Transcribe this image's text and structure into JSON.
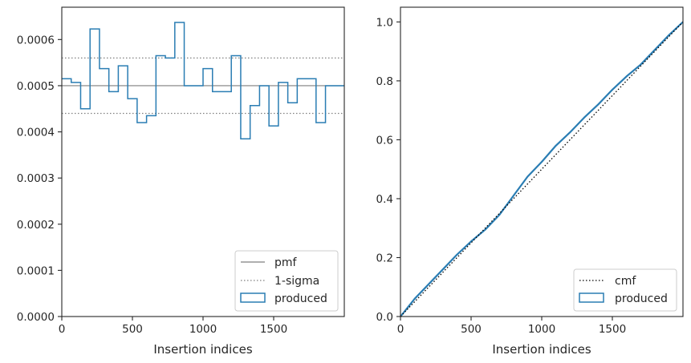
{
  "chart_data": [
    {
      "type": "line",
      "xlabel": "Insertion indices",
      "ylabel": "",
      "xlim": [
        0,
        2000
      ],
      "ylim": [
        0,
        0.00067
      ],
      "xticks": [
        0,
        500,
        1000,
        1500
      ],
      "xtick_labels": [
        "0",
        "500",
        "1000",
        "1500"
      ],
      "yticks": [
        0,
        0.0001,
        0.0002,
        0.0003,
        0.0004,
        0.0005,
        0.0006
      ],
      "ytick_labels": [
        "0.0000",
        "0.0001",
        "0.0002",
        "0.0003",
        "0.0004",
        "0.0005",
        "0.0006"
      ],
      "pmf": 0.0005,
      "sigma_bounds": [
        0.00044,
        0.00056
      ],
      "histogram": {
        "name": "produced",
        "bin_width": 66.67,
        "values": [
          0.000515,
          0.000507,
          0.00045,
          0.000623,
          0.000537,
          0.000487,
          0.000543,
          0.000472,
          0.00042,
          0.000435,
          0.000565,
          0.00056,
          0.000637,
          0.0005,
          0.0005,
          0.000537,
          0.000487,
          0.000487,
          0.000565,
          0.000385,
          0.000457,
          0.0005,
          0.000413,
          0.000507,
          0.000463,
          0.000515,
          0.000515,
          0.00042,
          0.0005,
          0.0005
        ]
      },
      "legend": {
        "position": "lower right",
        "entries": [
          {
            "label": "pmf",
            "style": "solid-gray"
          },
          {
            "label": "1-sigma",
            "style": "dotted-gray"
          },
          {
            "label": "produced",
            "style": "patch-blue"
          }
        ]
      }
    },
    {
      "type": "line",
      "xlabel": "Insertion indices",
      "ylabel": "",
      "xlim": [
        0,
        2000
      ],
      "ylim": [
        0,
        1.05
      ],
      "xticks": [
        0,
        500,
        1000,
        1500
      ],
      "xtick_labels": [
        "0",
        "500",
        "1000",
        "1500"
      ],
      "yticks": [
        0,
        0.2,
        0.4,
        0.6,
        0.8,
        1.0
      ],
      "ytick_labels": [
        "0.0",
        "0.2",
        "0.4",
        "0.6",
        "0.8",
        "1.0"
      ],
      "cmf": {
        "name": "cmf",
        "x": [
          0,
          2000
        ],
        "y": [
          0,
          1.0
        ]
      },
      "produced": {
        "name": "produced",
        "x": [
          0,
          100,
          200,
          300,
          400,
          500,
          600,
          700,
          800,
          900,
          1000,
          1100,
          1200,
          1300,
          1400,
          1500,
          1600,
          1700,
          1800,
          1900,
          2000
        ],
        "y": [
          0,
          0.06,
          0.11,
          0.16,
          0.21,
          0.255,
          0.295,
          0.345,
          0.41,
          0.475,
          0.525,
          0.58,
          0.625,
          0.675,
          0.72,
          0.77,
          0.815,
          0.855,
          0.905,
          0.955,
          1.0
        ]
      },
      "legend": {
        "position": "lower right",
        "entries": [
          {
            "label": "cmf",
            "style": "dotted-black"
          },
          {
            "label": "produced",
            "style": "patch-blue"
          }
        ]
      }
    }
  ],
  "colors": {
    "produced": "#2a7db3",
    "pmf": "#7f7f7f",
    "sigma": "#7f7f7f",
    "cmf": "#000000",
    "axes": "#262626"
  }
}
